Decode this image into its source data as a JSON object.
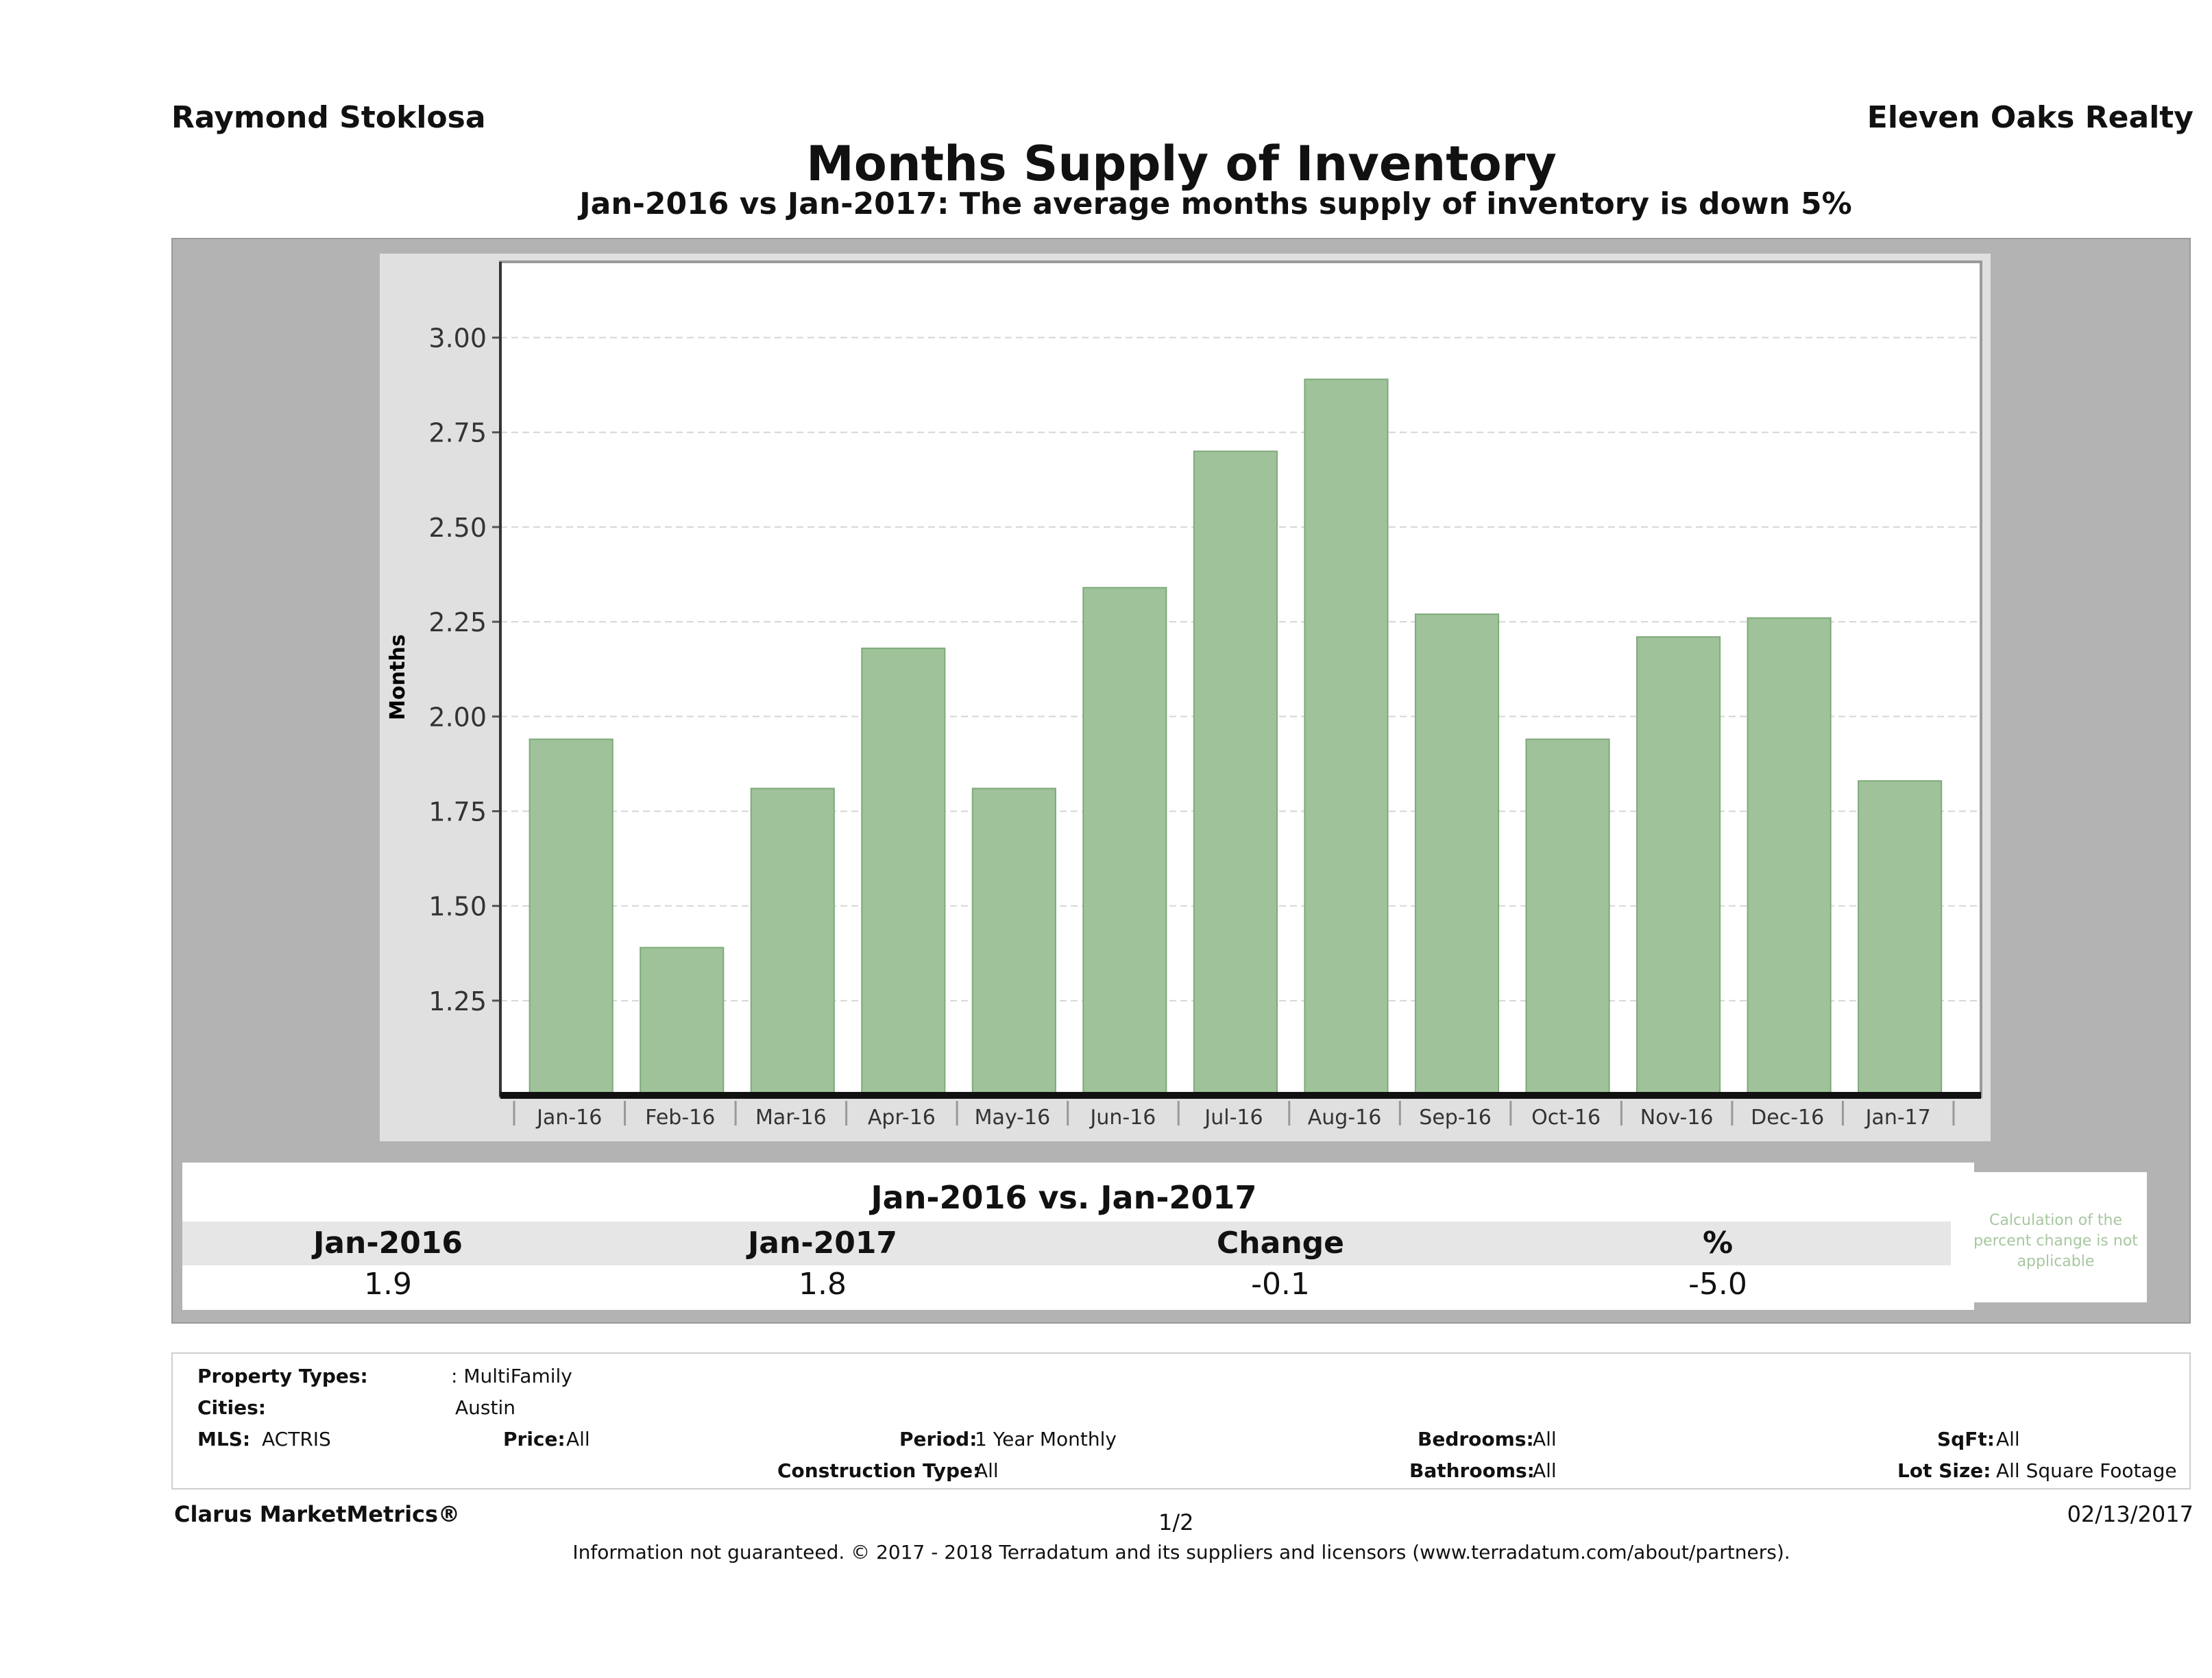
{
  "header": {
    "agent": "Raymond Stoklosa",
    "brokerage": "Eleven Oaks Realty",
    "title": "Months Supply of Inventory",
    "subtitle": "Jan-2016 vs Jan-2017: The average months supply of inventory is down 5%"
  },
  "chart_data": {
    "type": "bar",
    "ylabel": "Months",
    "xlabel": "",
    "categories": [
      "Jan-16",
      "Feb-16",
      "Mar-16",
      "Apr-16",
      "May-16",
      "Jun-16",
      "Jul-16",
      "Aug-16",
      "Sep-16",
      "Oct-16",
      "Nov-16",
      "Dec-16",
      "Jan-17"
    ],
    "values": [
      1.94,
      1.39,
      1.81,
      2.18,
      1.81,
      2.34,
      2.7,
      2.89,
      2.27,
      1.94,
      2.21,
      2.26,
      1.83
    ],
    "ylim": [
      1.0,
      3.2
    ],
    "yticks": [
      1.25,
      1.5,
      1.75,
      2.0,
      2.25,
      2.5,
      2.75,
      3.0
    ],
    "ytick_labels": [
      "1.25",
      "1.50",
      "1.75",
      "2.00",
      "2.25",
      "2.50",
      "2.75",
      "3.00"
    ],
    "grid": true,
    "bar_color": "#9fc29a",
    "bar_border": "#7faa7a"
  },
  "summary": {
    "title": "Jan-2016 vs. Jan-2017",
    "headers": [
      "Jan-2016",
      "Jan-2017",
      "Change",
      "%"
    ],
    "values": [
      "1.9",
      "1.8",
      "-0.1",
      "-5.0"
    ],
    "note": "Calculation of the percent change is not applicable"
  },
  "info": {
    "property_types_label": "Property Types:",
    "property_types_value": ": MultiFamily",
    "cities_label": "Cities:",
    "cities_value": "Austin",
    "mls_label": "MLS:",
    "mls_value": "ACTRIS",
    "price_label": "Price:",
    "price_value": "All",
    "period_label": "Period:",
    "period_value": "1 Year Monthly",
    "construction_label": "Construction Type:",
    "construction_value": "All",
    "bedrooms_label": "Bedrooms:",
    "bedrooms_value": "All",
    "bathrooms_label": "Bathrooms:",
    "bathrooms_value": "All",
    "sqft_label": "SqFt:",
    "sqft_value": "All",
    "lotsize_label": "Lot Size:",
    "lotsize_value": "All Square Footage"
  },
  "footer": {
    "brand": "Clarus MarketMetrics®",
    "page": "1/2",
    "date": "02/13/2017",
    "disclaimer": "Information not guaranteed. © 2017 - 2018 Terradatum and its suppliers and licensors (www.terradatum.com/about/partners)."
  }
}
